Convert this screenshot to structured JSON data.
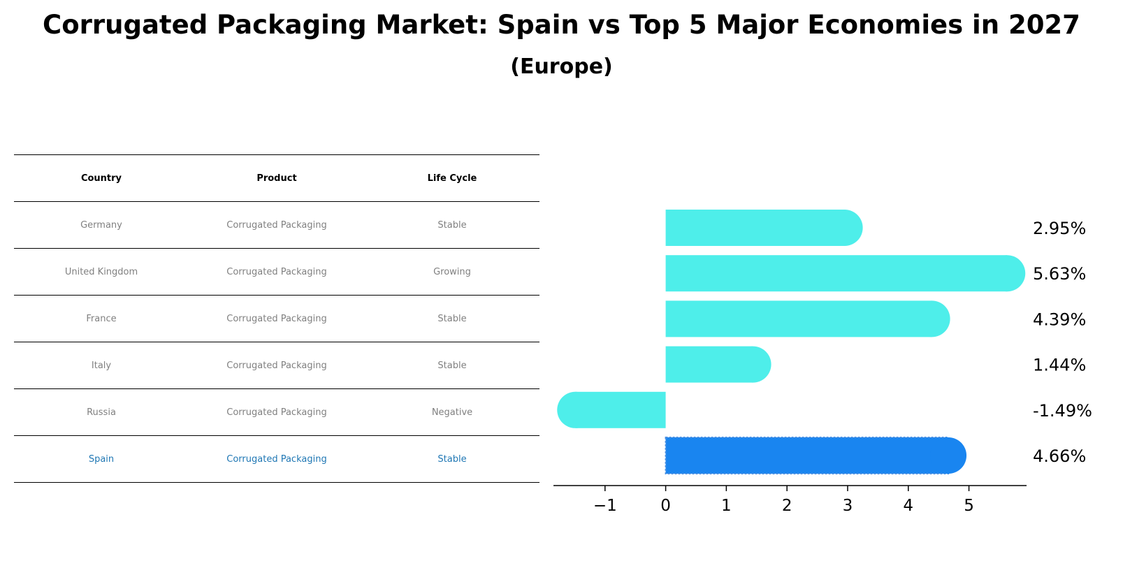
{
  "title": "Corrugated Packaging Market: Spain vs Top 5 Major Economies in 2027",
  "subtitle": "(Europe)",
  "table": {
    "headers": [
      "Country",
      "Product",
      "Life Cycle"
    ],
    "rows": [
      [
        "Germany",
        "Corrugated Packaging",
        "Stable"
      ],
      [
        "United Kingdom",
        "Corrugated Packaging",
        "Growing"
      ],
      [
        "France",
        "Corrugated Packaging",
        "Stable"
      ],
      [
        "Italy",
        "Corrugated Packaging",
        "Stable"
      ],
      [
        "Russia",
        "Corrugated Packaging",
        "Negative"
      ],
      [
        "Spain",
        "Corrugated Packaging",
        "Stable"
      ]
    ],
    "highlight_row": 5
  },
  "colors": {
    "bar": "#4eeeea",
    "highlight_bar": "#1985f0",
    "highlight_text": "#1f77b4",
    "muted_text": "#808080"
  },
  "chart_data": {
    "type": "bar",
    "orientation": "horizontal",
    "categories": [
      "Germany",
      "United Kingdom",
      "France",
      "Italy",
      "Russia",
      "Spain"
    ],
    "values": [
      2.95,
      5.63,
      4.39,
      1.44,
      -1.49,
      4.66
    ],
    "value_labels": [
      "2.95%",
      "5.63%",
      "4.39%",
      "1.44%",
      "-1.49%",
      "4.66%"
    ],
    "highlight_index": 5,
    "xlim": [
      -1.85,
      5.95
    ],
    "xticks": [
      -1,
      0,
      1,
      2,
      3,
      4,
      5
    ],
    "xtick_labels": [
      "−1",
      "0",
      "1",
      "2",
      "3",
      "4",
      "5"
    ],
    "xlabel": "",
    "ylabel": ""
  }
}
